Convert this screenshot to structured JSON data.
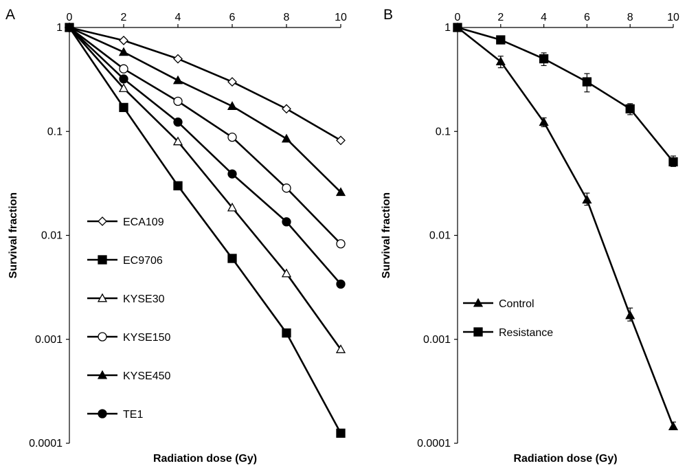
{
  "chart_data": [
    {
      "type": "line",
      "panel_label": "A",
      "xlabel": "Radiation dose (Gy)",
      "ylabel": "Survival fraction",
      "x_ticks": [
        "0",
        "2",
        "4",
        "6",
        "8",
        "10"
      ],
      "y_ticks": [
        "1",
        "0.1",
        "0.01",
        "0.001",
        "0.0001"
      ],
      "xlim": [
        0,
        10
      ],
      "ylim": [
        0.0001,
        1
      ],
      "y_scale": "log",
      "x_axis_position": "top",
      "grid": false,
      "legend_position": "bottom-left",
      "x": [
        0,
        2,
        4,
        6,
        8,
        10
      ],
      "series": [
        {
          "name": "ECA109",
          "marker": "diamond-open",
          "values": [
            1,
            0.75,
            0.5,
            0.3,
            0.165,
            0.082
          ]
        },
        {
          "name": "EC9706",
          "marker": "square-filled",
          "values": [
            1,
            0.17,
            0.03,
            0.006,
            0.00115,
            0.000125
          ]
        },
        {
          "name": "KYSE30",
          "marker": "triangle-open",
          "values": [
            1,
            0.26,
            0.08,
            0.0185,
            0.0043,
            0.0008
          ]
        },
        {
          "name": "KYSE150",
          "marker": "circle-open",
          "values": [
            1,
            0.4,
            0.195,
            0.088,
            0.0285,
            0.0083
          ]
        },
        {
          "name": "KYSE450",
          "marker": "triangle-filled",
          "values": [
            1,
            0.58,
            0.31,
            0.175,
            0.085,
            0.026
          ]
        },
        {
          "name": "TE1",
          "marker": "circle-filled",
          "values": [
            1,
            0.32,
            0.123,
            0.039,
            0.0135,
            0.0034
          ]
        }
      ]
    },
    {
      "type": "line",
      "panel_label": "B",
      "xlabel": "Radiation dose (Gy)",
      "ylabel": "Survival fraction",
      "x_ticks": [
        "0",
        "2",
        "4",
        "6",
        "8",
        "10"
      ],
      "y_ticks": [
        "1",
        "0.1",
        "0.01",
        "0.001",
        "0.0001"
      ],
      "xlim": [
        0,
        10
      ],
      "ylim": [
        0.0001,
        1
      ],
      "y_scale": "log",
      "x_axis_position": "top",
      "grid": false,
      "legend_position": "bottom-left",
      "error_bars": true,
      "x": [
        0,
        2,
        4,
        6,
        8,
        10
      ],
      "series": [
        {
          "name": "Control",
          "marker": "triangle-filled",
          "values": [
            1,
            0.47,
            0.123,
            0.022,
            0.0017,
            0.000145
          ],
          "err_low": [
            1,
            0.41,
            0.111,
            0.0195,
            0.0015,
            0.000135
          ],
          "err_high": [
            1,
            0.53,
            0.135,
            0.0255,
            0.002,
            0.00016
          ]
        },
        {
          "name": "Resistance",
          "marker": "square-filled",
          "values": [
            1,
            0.76,
            0.5,
            0.3,
            0.165,
            0.051
          ],
          "err_low": [
            1,
            0.72,
            0.43,
            0.24,
            0.145,
            0.046
          ],
          "err_high": [
            1,
            0.8,
            0.57,
            0.36,
            0.185,
            0.058
          ]
        }
      ]
    }
  ]
}
